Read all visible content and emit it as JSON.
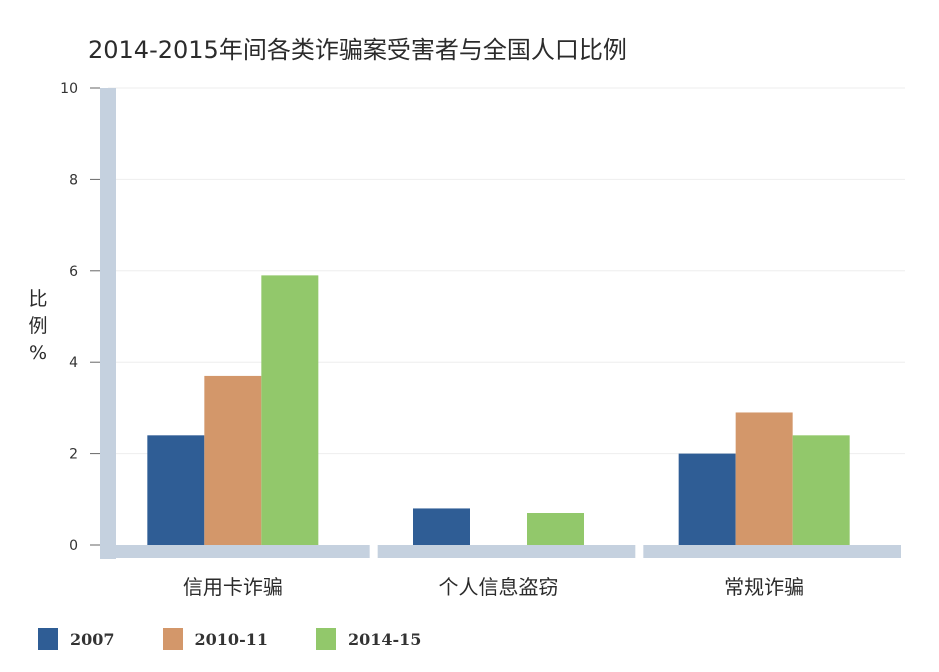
{
  "chart_data": {
    "type": "bar",
    "title": "2014-2015年间各类诈骗案受害者与全国人口比例",
    "ylabel": "比例%",
    "xlabel": "",
    "ylim": [
      0,
      10
    ],
    "yticks": [
      0,
      2,
      4,
      6,
      8,
      10
    ],
    "categories": [
      "信用卡诈骗",
      "个人信息盗窃",
      "常规诈骗"
    ],
    "series": [
      {
        "name": "2007",
        "color": "#2f5d95",
        "values": [
          2.4,
          0.8,
          2.0
        ]
      },
      {
        "name": "2010-11",
        "color": "#d3976a",
        "values": [
          3.7,
          0,
          2.9
        ]
      },
      {
        "name": "2014-15",
        "color": "#92c86b",
        "values": [
          5.9,
          0.7,
          2.4
        ]
      }
    ],
    "grid": true,
    "legend_position": "bottom-left"
  },
  "colors": {
    "axis": "#c5d1df",
    "grid": "#eeeeee"
  }
}
